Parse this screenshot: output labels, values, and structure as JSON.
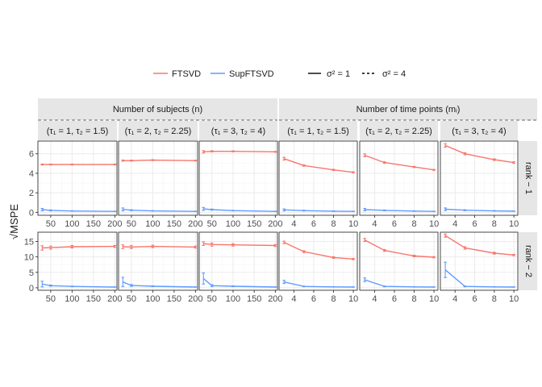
{
  "colors": {
    "FTSVD": "#F8766D",
    "SupFTSVD": "#619CFF",
    "strip_bg": "#E6E6E6",
    "panel_border": "#333333",
    "grid_major": "#EBEBEB",
    "grid_minor": "#F5F5F5"
  },
  "legend": {
    "items": [
      {
        "label": "FTSVD",
        "color": "#F8766D",
        "linetype": "solid"
      },
      {
        "label": "SupFTSVD",
        "color": "#619CFF",
        "linetype": "solid"
      },
      {
        "label": "σ² = 1",
        "color": "#000000",
        "linetype": "solid"
      },
      {
        "label": "σ² = 4",
        "color": "#000000",
        "linetype": "dashed"
      }
    ]
  },
  "y_axis_label": "√MSPE",
  "chart_data": {
    "type": "line",
    "groups": [
      {
        "label": "Number of subjects (n)",
        "x": [
          30,
          50,
          100,
          200
        ],
        "x_ticks": [
          50,
          100,
          150,
          200
        ],
        "xlim": [
          20,
          205
        ]
      },
      {
        "label": "Number of time points (mᵢ)",
        "x": [
          3,
          5,
          8,
          10
        ],
        "x_ticks": [
          4,
          6,
          8,
          10
        ],
        "xlim": [
          2.5,
          10.4
        ]
      }
    ],
    "column_labels": [
      "(τ₁ = 1, τ₂ = 1.5)",
      "(τ₁ = 2, τ₂ = 2.25)",
      "(τ₁ = 3, τ₂ = 4)"
    ],
    "rows": [
      {
        "label": "rank − 1",
        "ylim": [
          -0.3,
          7.3
        ],
        "y_ticks": [
          0,
          2,
          4,
          6
        ]
      },
      {
        "label": "rank − 2",
        "ylim": [
          -0.8,
          18.0
        ],
        "y_ticks": [
          0,
          5,
          10,
          15
        ]
      }
    ],
    "panels": [
      {
        "row": 0,
        "group": 0,
        "col": 0,
        "series": [
          {
            "name": "FTSVD",
            "values": [
              4.9,
              4.9,
              4.9,
              4.9
            ],
            "err": [
              0.05,
              0.04,
              0.04,
              0.04
            ]
          },
          {
            "name": "SupFTSVD",
            "values": [
              0.28,
              0.2,
              0.14,
              0.1
            ],
            "err": [
              0.12,
              0.05,
              0.03,
              0.02
            ]
          }
        ]
      },
      {
        "row": 0,
        "group": 0,
        "col": 1,
        "series": [
          {
            "name": "FTSVD",
            "values": [
              5.3,
              5.3,
              5.35,
              5.3
            ],
            "err": [
              0.06,
              0.05,
              0.05,
              0.04
            ]
          },
          {
            "name": "SupFTSVD",
            "values": [
              0.3,
              0.22,
              0.15,
              0.1
            ],
            "err": [
              0.15,
              0.05,
              0.03,
              0.02
            ]
          }
        ]
      },
      {
        "row": 0,
        "group": 0,
        "col": 2,
        "series": [
          {
            "name": "FTSVD",
            "values": [
              6.2,
              6.25,
              6.25,
              6.2
            ],
            "err": [
              0.12,
              0.06,
              0.05,
              0.04
            ]
          },
          {
            "name": "SupFTSVD",
            "values": [
              0.35,
              0.28,
              0.18,
              0.1
            ],
            "err": [
              0.15,
              0.06,
              0.03,
              0.02
            ]
          }
        ]
      },
      {
        "row": 0,
        "group": 1,
        "col": 0,
        "series": [
          {
            "name": "FTSVD",
            "values": [
              5.5,
              4.8,
              4.35,
              4.1
            ],
            "err": [
              0.14,
              0.07,
              0.06,
              0.05
            ]
          },
          {
            "name": "SupFTSVD",
            "values": [
              0.25,
              0.18,
              0.12,
              0.1
            ],
            "err": [
              0.1,
              0.04,
              0.03,
              0.02
            ]
          }
        ]
      },
      {
        "row": 0,
        "group": 1,
        "col": 1,
        "series": [
          {
            "name": "FTSVD",
            "values": [
              5.85,
              5.1,
              4.65,
              4.35
            ],
            "err": [
              0.15,
              0.08,
              0.06,
              0.05
            ]
          },
          {
            "name": "SupFTSVD",
            "values": [
              0.28,
              0.2,
              0.13,
              0.1
            ],
            "err": [
              0.12,
              0.04,
              0.03,
              0.02
            ]
          }
        ]
      },
      {
        "row": 0,
        "group": 1,
        "col": 2,
        "series": [
          {
            "name": "FTSVD",
            "values": [
              6.85,
              6.0,
              5.4,
              5.1
            ],
            "err": [
              0.18,
              0.1,
              0.08,
              0.08
            ]
          },
          {
            "name": "SupFTSVD",
            "values": [
              0.32,
              0.22,
              0.15,
              0.12
            ],
            "err": [
              0.13,
              0.05,
              0.03,
              0.02
            ]
          }
        ]
      },
      {
        "row": 1,
        "group": 0,
        "col": 0,
        "series": [
          {
            "name": "FTSVD",
            "values": [
              12.9,
              13.0,
              13.3,
              13.4
            ],
            "err": [
              0.7,
              0.5,
              0.4,
              0.3
            ]
          },
          {
            "name": "SupFTSVD",
            "values": [
              1.2,
              0.7,
              0.45,
              0.25
            ],
            "err": [
              0.9,
              0.2,
              0.1,
              0.05
            ]
          }
        ]
      },
      {
        "row": 1,
        "group": 0,
        "col": 1,
        "series": [
          {
            "name": "FTSVD",
            "values": [
              13.3,
              13.2,
              13.4,
              13.2
            ],
            "err": [
              0.6,
              0.5,
              0.4,
              0.3
            ]
          },
          {
            "name": "SupFTSVD",
            "values": [
              1.9,
              0.75,
              0.5,
              0.25
            ],
            "err": [
              1.5,
              0.3,
              0.12,
              0.05
            ]
          }
        ]
      },
      {
        "row": 1,
        "group": 0,
        "col": 2,
        "series": [
          {
            "name": "FTSVD",
            "values": [
              14.3,
              14.0,
              13.9,
              13.7
            ],
            "err": [
              0.6,
              0.5,
              0.4,
              0.3
            ]
          },
          {
            "name": "SupFTSVD",
            "values": [
              3.0,
              0.7,
              0.5,
              0.25
            ],
            "err": [
              1.8,
              0.3,
              0.12,
              0.05
            ]
          }
        ]
      },
      {
        "row": 1,
        "group": 1,
        "col": 0,
        "series": [
          {
            "name": "FTSVD",
            "values": [
              14.7,
              11.7,
              9.8,
              9.3
            ],
            "err": [
              0.4,
              0.3,
              0.25,
              0.2
            ]
          },
          {
            "name": "SupFTSVD",
            "values": [
              1.9,
              0.45,
              0.3,
              0.25
            ],
            "err": [
              0.5,
              0.1,
              0.06,
              0.05
            ]
          }
        ]
      },
      {
        "row": 1,
        "group": 1,
        "col": 1,
        "series": [
          {
            "name": "FTSVD",
            "values": [
              15.5,
              12.1,
              10.3,
              9.9
            ],
            "err": [
              0.5,
              0.3,
              0.25,
              0.2
            ]
          },
          {
            "name": "SupFTSVD",
            "values": [
              2.6,
              0.45,
              0.3,
              0.25
            ],
            "err": [
              0.6,
              0.12,
              0.06,
              0.05
            ]
          }
        ]
      },
      {
        "row": 1,
        "group": 1,
        "col": 2,
        "series": [
          {
            "name": "FTSVD",
            "values": [
              16.9,
              12.9,
              11.2,
              10.6
            ],
            "err": [
              0.5,
              0.4,
              0.3,
              0.2
            ]
          },
          {
            "name": "SupFTSVD",
            "values": [
              5.8,
              0.45,
              0.3,
              0.25
            ],
            "err": [
              2.5,
              0.12,
              0.06,
              0.05
            ]
          }
        ]
      }
    ]
  }
}
